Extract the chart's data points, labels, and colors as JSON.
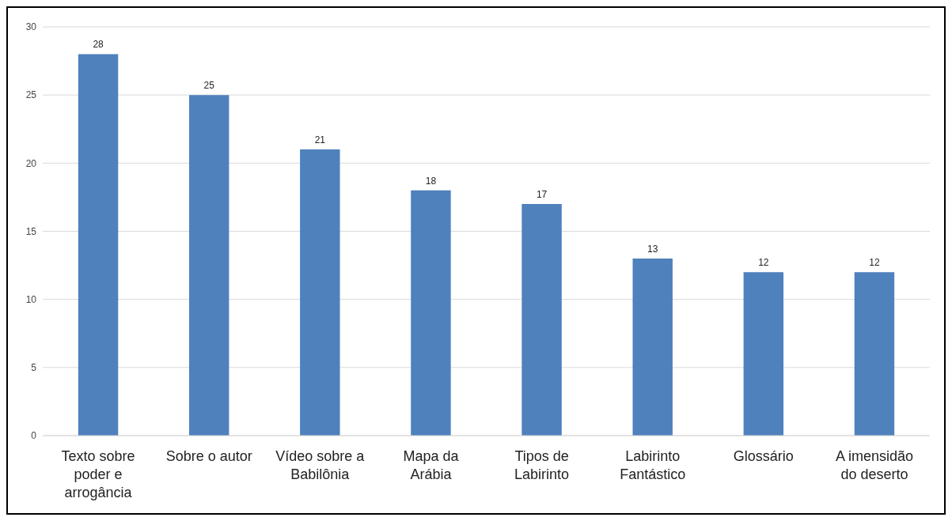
{
  "chart_data": {
    "type": "bar",
    "categories": [
      "Texto sobre poder e arrogância",
      "Sobre o autor",
      "Vídeo sobre a Babilônia",
      "Mapa da Arábia",
      "Tipos de Labirinto",
      "Labirinto Fantástico",
      "Glossário",
      "A imensidão do deserto"
    ],
    "values": [
      28,
      25,
      21,
      18,
      17,
      13,
      12,
      12
    ],
    "color": "#4f81bd",
    "ylim": [
      0,
      30
    ],
    "yticks": [
      0,
      5,
      10,
      15,
      20,
      25,
      30
    ],
    "grid": "y",
    "data_labels": true
  }
}
